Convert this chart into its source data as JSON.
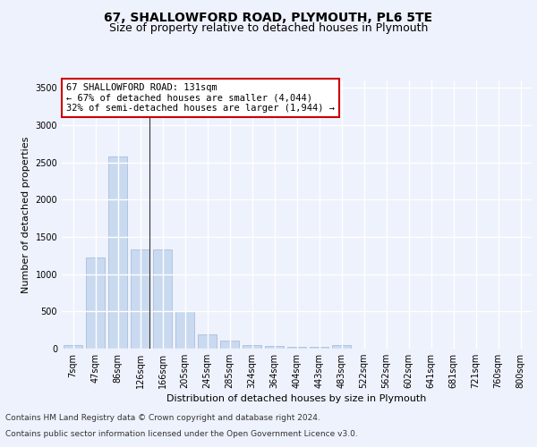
{
  "title_line1": "67, SHALLOWFORD ROAD, PLYMOUTH, PL6 5TE",
  "title_line2": "Size of property relative to detached houses in Plymouth",
  "xlabel": "Distribution of detached houses by size in Plymouth",
  "ylabel": "Number of detached properties",
  "categories": [
    "7sqm",
    "47sqm",
    "86sqm",
    "126sqm",
    "166sqm",
    "205sqm",
    "245sqm",
    "285sqm",
    "324sqm",
    "364sqm",
    "404sqm",
    "443sqm",
    "483sqm",
    "522sqm",
    "562sqm",
    "602sqm",
    "641sqm",
    "681sqm",
    "721sqm",
    "760sqm",
    "800sqm"
  ],
  "values": [
    50,
    1220,
    2580,
    1330,
    1330,
    500,
    195,
    105,
    50,
    40,
    30,
    30,
    50,
    0,
    0,
    0,
    0,
    0,
    0,
    0,
    0
  ],
  "bar_color": "#c9d9f0",
  "bar_edge_color": "#a0b8d8",
  "marker_line_index": 3,
  "marker_line_color": "#333333",
  "annotation_text": "67 SHALLOWFORD ROAD: 131sqm\n← 67% of detached houses are smaller (4,044)\n32% of semi-detached houses are larger (1,944) →",
  "annotation_box_color": "#ffffff",
  "annotation_box_edgecolor": "#cc0000",
  "ylim": [
    0,
    3600
  ],
  "yticks": [
    0,
    500,
    1000,
    1500,
    2000,
    2500,
    3000,
    3500
  ],
  "footer_line1": "Contains HM Land Registry data © Crown copyright and database right 2024.",
  "footer_line2": "Contains public sector information licensed under the Open Government Licence v3.0.",
  "background_color": "#eef2fc",
  "plot_background_color": "#eef2fc",
  "grid_color": "#ffffff",
  "title_fontsize": 10,
  "subtitle_fontsize": 9,
  "axis_label_fontsize": 8,
  "tick_fontsize": 7,
  "annotation_fontsize": 7.5,
  "footer_fontsize": 6.5
}
